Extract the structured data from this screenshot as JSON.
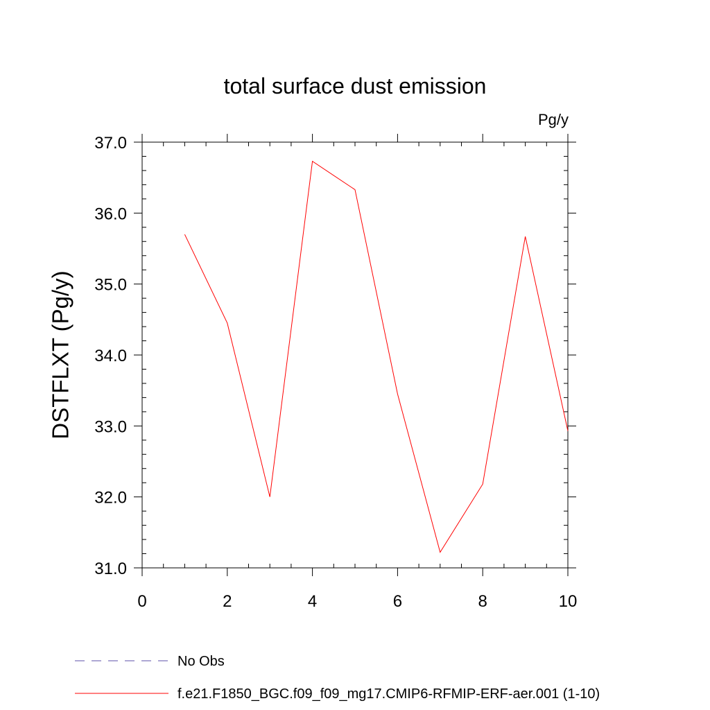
{
  "chart_data": {
    "type": "line",
    "title": "total surface dust emission",
    "units_label": "Pg/y",
    "ylabel": "DSTFLXT  (Pg/y)",
    "xlabel": "",
    "xlim": [
      0,
      10
    ],
    "ylim": [
      31.0,
      37.0
    ],
    "x_ticks": [
      0,
      2,
      4,
      6,
      8,
      10
    ],
    "x_tick_labels": [
      "0",
      "2",
      "4",
      "6",
      "8",
      "10"
    ],
    "y_ticks": [
      31.0,
      32.0,
      33.0,
      34.0,
      35.0,
      36.0,
      37.0
    ],
    "y_tick_labels": [
      "31.0",
      "32.0",
      "33.0",
      "34.0",
      "35.0",
      "36.0",
      "37.0"
    ],
    "grid": false,
    "legend_placement": "bottom",
    "series": [
      {
        "name": "f.e21.F1850_BGC.f09_f09_mg17.CMIP6-RFMIP-ERF-aer.001 (1-10)",
        "color": "#ff0000",
        "style": "solid",
        "x": [
          1,
          2,
          3,
          4,
          5,
          6,
          7,
          8,
          9,
          10
        ],
        "y": [
          35.7,
          34.45,
          32.0,
          36.73,
          36.33,
          33.45,
          31.22,
          32.18,
          35.67,
          32.93
        ]
      }
    ],
    "legend": [
      {
        "label": "No Obs",
        "color": "#5b4fa8",
        "style": "dashed"
      },
      {
        "label": "f.e21.F1850_BGC.f09_f09_mg17.CMIP6-RFMIP-ERF-aer.001 (1-10)",
        "color": "#ff0000",
        "style": "solid"
      }
    ]
  }
}
